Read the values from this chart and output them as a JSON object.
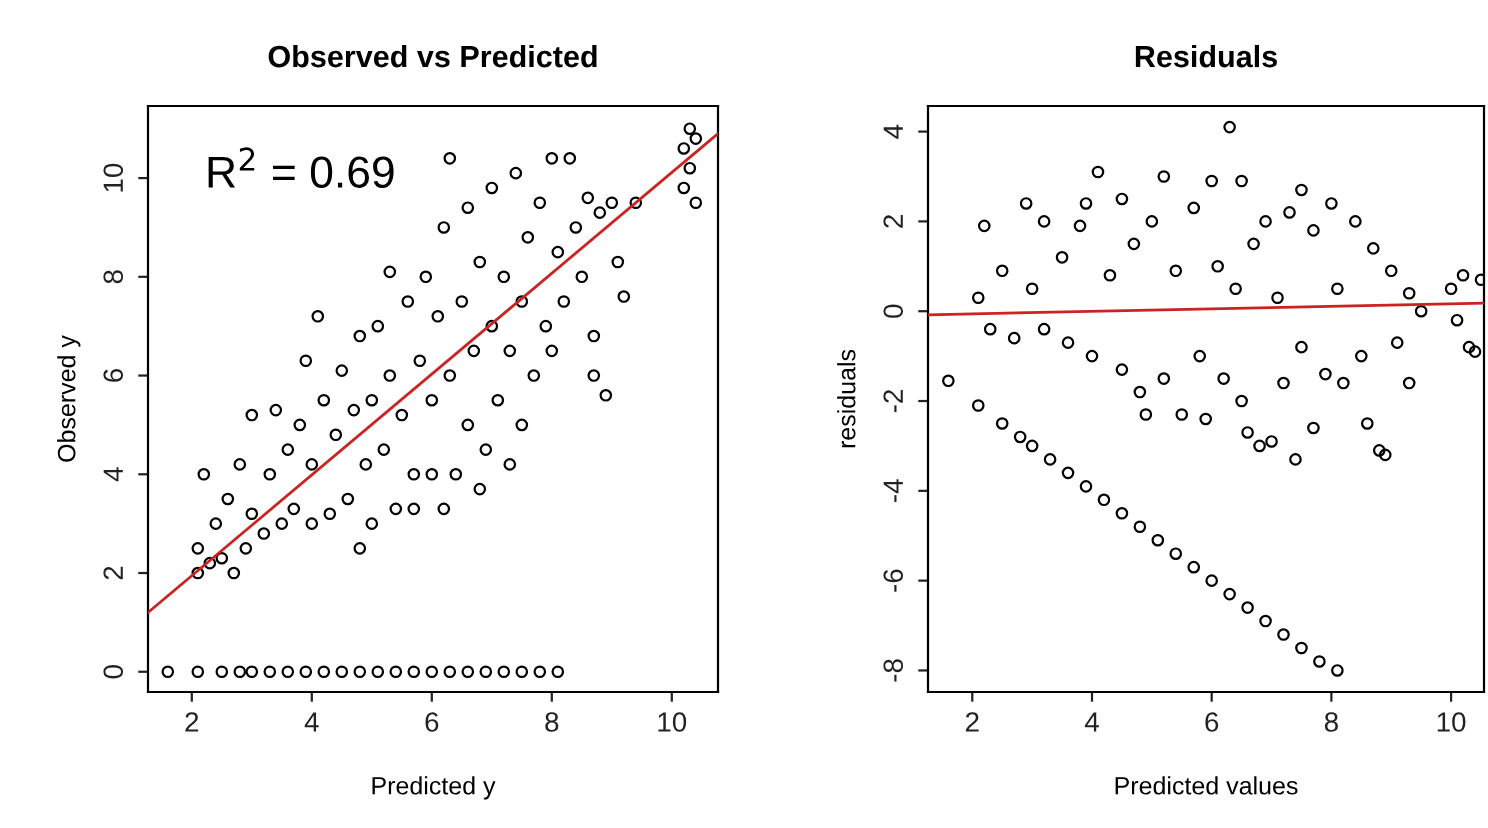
{
  "chart_data": [
    {
      "type": "scatter",
      "title": "Observed vs Predicted",
      "xlabel": "Predicted y",
      "ylabel": "Observed y",
      "xlim": [
        1.27,
        10.77
      ],
      "ylim": [
        -0.41,
        11.46
      ],
      "xticks": [
        2,
        4,
        6,
        8,
        10
      ],
      "yticks": [
        0,
        2,
        4,
        6,
        8,
        10
      ],
      "marker": "circle",
      "annotations": [
        "R$^{2}$ = 0.69"
      ],
      "series": [
        {
          "color": "#000000",
          "x": [
            2.1,
            2.1,
            2.2,
            2.3,
            2.4,
            2.5,
            2.6,
            2.7,
            2.8,
            2.9,
            3.0,
            3.0,
            3.2,
            3.3,
            3.4,
            3.5,
            3.6,
            3.7,
            3.8,
            3.9,
            4.0,
            4.0,
            4.1,
            4.2,
            4.3,
            4.4,
            4.5,
            4.6,
            4.7,
            4.8,
            4.8,
            4.9,
            5.0,
            5.0,
            5.1,
            5.2,
            5.3,
            5.3,
            5.4,
            5.5,
            5.6,
            5.7,
            5.7,
            5.8,
            5.9,
            6.0,
            6.0,
            6.1,
            6.2,
            6.2,
            6.3,
            6.3,
            6.4,
            6.5,
            6.6,
            6.6,
            6.7,
            6.8,
            6.8,
            6.9,
            7.0,
            7.0,
            7.1,
            7.2,
            7.3,
            7.3,
            7.4,
            7.5,
            7.5,
            7.6,
            7.7,
            7.8,
            7.9,
            8.0,
            8.0,
            8.1,
            8.2,
            8.3,
            8.4,
            8.5,
            8.6,
            8.7,
            8.7,
            8.8,
            8.9,
            9.0,
            9.2,
            9.4,
            9.1,
            10.2,
            10.2,
            10.3,
            10.3,
            10.4,
            10.4,
            1.6,
            2.1,
            2.5,
            2.8,
            3.0,
            3.3,
            3.6,
            3.9,
            4.2,
            4.5,
            4.8,
            5.1,
            5.4,
            5.7,
            6.0,
            6.3,
            6.6,
            6.9,
            7.2,
            7.5,
            7.8,
            8.1
          ],
          "values": [
            2.0,
            2.5,
            4.0,
            2.2,
            3.0,
            2.3,
            3.5,
            2.0,
            4.2,
            2.5,
            3.2,
            5.2,
            2.8,
            4.0,
            5.3,
            3.0,
            4.5,
            3.3,
            5.0,
            6.3,
            3.0,
            4.2,
            7.2,
            5.5,
            3.2,
            4.8,
            6.1,
            3.5,
            5.3,
            2.5,
            6.8,
            4.2,
            5.5,
            3.0,
            7.0,
            4.5,
            6.0,
            8.1,
            3.3,
            5.2,
            7.5,
            4.0,
            3.3,
            6.3,
            8.0,
            4.0,
            5.5,
            7.2,
            3.3,
            9.0,
            6.0,
            10.4,
            4.0,
            7.5,
            5.0,
            9.4,
            6.5,
            3.7,
            8.3,
            4.5,
            7.0,
            9.8,
            5.5,
            8.0,
            4.2,
            6.5,
            10.1,
            7.5,
            5.0,
            8.8,
            6.0,
            9.5,
            7.0,
            6.5,
            10.4,
            8.5,
            7.5,
            10.4,
            9.0,
            8.0,
            9.6,
            6.8,
            6.0,
            9.3,
            5.6,
            9.5,
            7.6,
            9.5,
            8.3,
            10.6,
            9.8,
            11.0,
            10.2,
            9.5,
            10.8,
            0,
            0,
            0,
            0,
            0,
            0,
            0,
            0,
            0,
            0,
            0,
            0,
            0,
            0,
            0,
            0,
            0,
            0,
            0,
            0,
            0,
            0
          ]
        },
        {
          "type": "line",
          "color": "#cc2222",
          "x": [
            1.27,
            10.77
          ],
          "values": [
            1.2,
            10.9
          ],
          "marker": "none"
        }
      ]
    },
    {
      "type": "scatter",
      "title": "Residuals",
      "xlabel": "Predicted values",
      "ylabel": "residuals",
      "xlim": [
        1.26,
        10.55
      ],
      "ylim": [
        -8.48,
        4.57
      ],
      "xticks": [
        2,
        4,
        6,
        8,
        10
      ],
      "yticks": [
        -8,
        -6,
        -4,
        -2,
        0,
        2,
        4
      ],
      "marker": "circle",
      "series": [
        {
          "color": "#000000",
          "x": [
            2.1,
            2.2,
            2.3,
            2.5,
            2.7,
            2.9,
            3.0,
            3.2,
            3.2,
            3.5,
            3.6,
            3.8,
            3.9,
            4.0,
            4.1,
            4.3,
            4.5,
            4.5,
            4.7,
            4.8,
            4.9,
            5.0,
            5.2,
            5.2,
            5.4,
            5.5,
            5.7,
            5.8,
            5.9,
            6.0,
            6.1,
            6.2,
            6.3,
            6.4,
            6.5,
            6.5,
            6.6,
            6.7,
            6.8,
            6.9,
            7.0,
            7.1,
            7.2,
            7.3,
            7.4,
            7.5,
            7.5,
            7.7,
            7.7,
            7.9,
            8.0,
            8.1,
            8.2,
            8.4,
            8.5,
            8.6,
            8.7,
            8.8,
            8.9,
            9.0,
            9.1,
            9.3,
            9.3,
            9.5,
            10.0,
            10.1,
            10.2,
            10.3,
            10.4,
            10.5,
            1.6,
            2.1,
            2.5,
            2.8,
            3.0,
            3.3,
            3.6,
            3.9,
            4.2,
            4.5,
            4.8,
            5.1,
            5.4,
            5.7,
            6.0,
            6.3,
            6.6,
            6.9,
            7.2,
            7.5,
            7.8,
            8.1
          ],
          "values": [
            0.3,
            1.9,
            -0.4,
            0.9,
            -0.6,
            2.4,
            0.5,
            -0.4,
            2.0,
            1.2,
            -0.7,
            1.9,
            2.4,
            -1.0,
            3.1,
            0.8,
            2.5,
            -1.3,
            1.5,
            -1.8,
            -2.3,
            2.0,
            -1.5,
            3.0,
            0.9,
            -2.3,
            2.3,
            -1.0,
            -2.4,
            2.9,
            1.0,
            -1.5,
            4.1,
            0.5,
            2.9,
            -2.0,
            -2.7,
            1.5,
            -3.0,
            2.0,
            -2.9,
            0.3,
            -1.6,
            2.2,
            -3.3,
            2.7,
            -0.8,
            1.8,
            -2.6,
            -1.4,
            2.4,
            0.5,
            -1.6,
            2.0,
            -1.0,
            -2.5,
            1.4,
            -3.1,
            -3.2,
            0.9,
            -0.7,
            -1.6,
            0.4,
            0.0,
            0.5,
            -0.2,
            0.8,
            -0.8,
            -0.9,
            0.7,
            -1.55,
            -2.1,
            -2.5,
            -2.8,
            -3.0,
            -3.3,
            -3.6,
            -3.9,
            -4.2,
            -4.5,
            -4.8,
            -5.1,
            -5.4,
            -5.7,
            -6.0,
            -6.3,
            -6.6,
            -6.9,
            -7.2,
            -7.5,
            -7.8,
            -8.0
          ]
        },
        {
          "type": "line",
          "color": "#cc2222",
          "x": [
            1.26,
            10.55
          ],
          "values": [
            -0.08,
            0.18
          ],
          "marker": "none"
        }
      ]
    }
  ]
}
